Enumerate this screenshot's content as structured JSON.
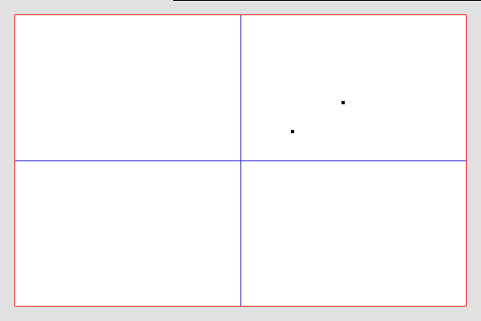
{
  "colors": {
    "page_background": "#e1e1e1",
    "canvas_background": "#ffffff",
    "canvas_border": "#ee1111",
    "axis_lines": "#1111cc",
    "points": "#000000"
  },
  "canvas": {
    "has_top_line": true
  }
}
